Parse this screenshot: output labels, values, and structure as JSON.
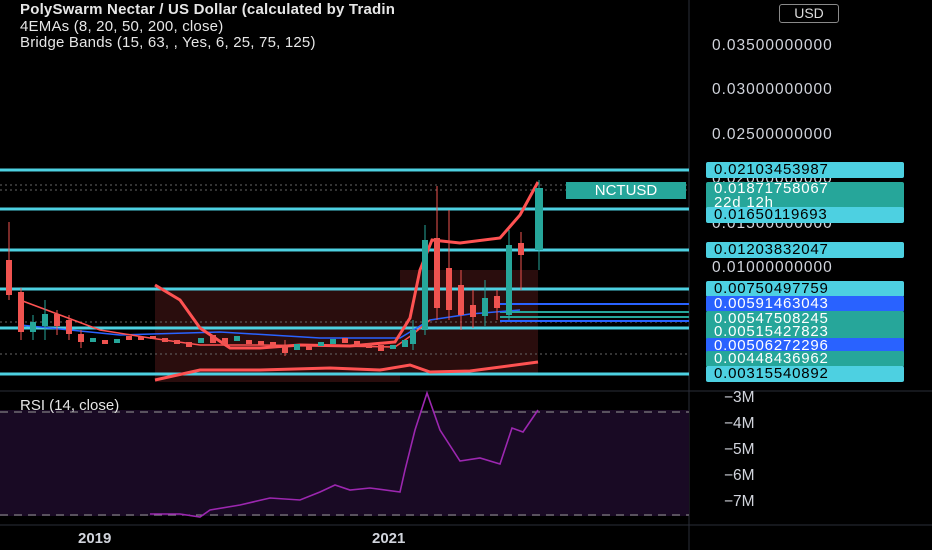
{
  "header": {
    "title": "PolySwarm Nectar / US Dollar (calculated by Tradin",
    "indicator_emas": "4EMAs (8, 20, 50, 200, close)",
    "indicator_bands": "Bridge Bands (15, 63, , Yes, 6, 25, 75, 125)"
  },
  "currency_button": "USD",
  "symbol_tag": "NCTUSD",
  "price_axis": {
    "ticks": [
      "0.03500000000",
      "0.03000000000",
      "0.02500000000",
      "0.02000000000",
      "0.01500000000",
      "0.01000000000"
    ]
  },
  "price_tags": [
    {
      "label": "0.02103453987",
      "color": "#4dd0e1",
      "text": "#000000"
    },
    {
      "label": "0.01871758067",
      "sub": "22d 12h",
      "color": "#26a69a",
      "text": "#ffffff"
    },
    {
      "label": "0.01650119693",
      "color": "#4dd0e1",
      "text": "#000000"
    },
    {
      "label": "0.01203832047",
      "color": "#4dd0e1",
      "text": "#000000"
    },
    {
      "label": "0.00750497759",
      "color": "#4dd0e1",
      "text": "#000000"
    },
    {
      "label": "0.00591463043",
      "color": "#2962ff",
      "text": "#ffffff"
    },
    {
      "label": "0.00547508245",
      "color": "#26a69a",
      "text": "#ffffff"
    },
    {
      "label": "0.00515427823",
      "color": "#26a69a",
      "text": "#ffffff"
    },
    {
      "label": "0.00506272296",
      "color": "#2962ff",
      "text": "#ffffff"
    },
    {
      "label": "0.00448436962",
      "color": "#26a69a",
      "text": "#ffffff"
    },
    {
      "label": "0.00315540892",
      "color": "#4dd0e1",
      "text": "#000000"
    }
  ],
  "rsi": {
    "label": "RSI (14, close)",
    "ticks": [
      "−3M",
      "−4M",
      "−5M",
      "−6M",
      "−7M"
    ]
  },
  "time_axis": [
    "2019",
    "2021"
  ],
  "colors": {
    "up": "#26a69a",
    "down": "#ef5350",
    "level_line": "#4dd0e1",
    "rsi_line": "#9c27b0",
    "band": "#ff5252",
    "ema": "#2962ff"
  }
}
